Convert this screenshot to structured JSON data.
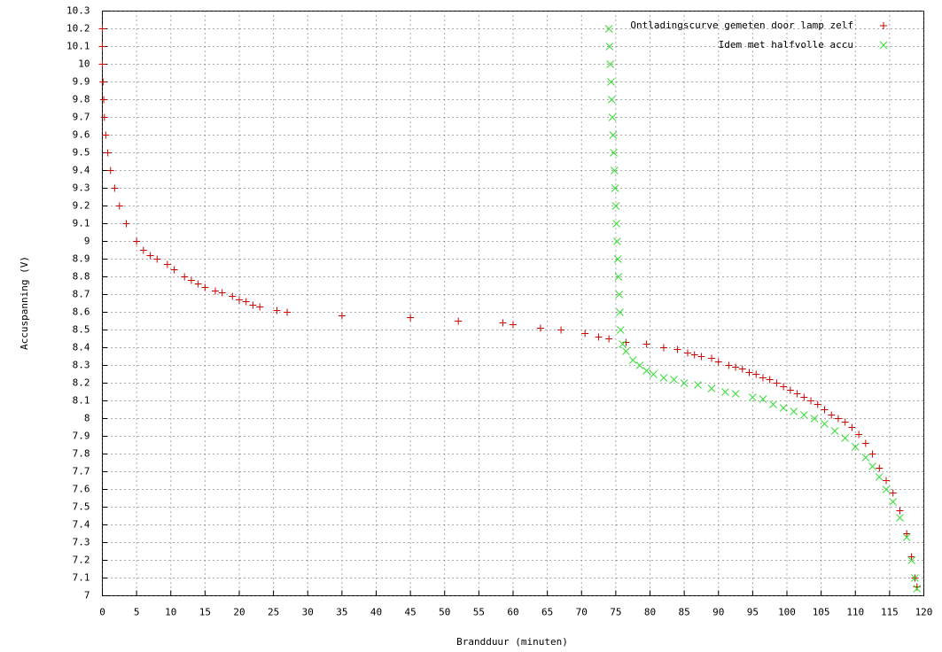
{
  "chart_data": {
    "type": "scatter",
    "x_label": "Brandduur (minuten)",
    "y_label": "Accuspanning (V)",
    "xlim": [
      0,
      120
    ],
    "ylim": [
      7,
      10.3
    ],
    "xticks": [
      0,
      5,
      10,
      15,
      20,
      25,
      30,
      35,
      40,
      45,
      50,
      55,
      60,
      65,
      70,
      75,
      80,
      85,
      90,
      95,
      100,
      105,
      110,
      115,
      120
    ],
    "yticks": [
      7,
      7.1,
      7.2,
      7.3,
      7.4,
      7.5,
      7.6,
      7.7,
      7.8,
      7.9,
      8,
      8.1,
      8.2,
      8.3,
      8.4,
      8.5,
      8.6,
      8.7,
      8.8,
      8.9,
      9,
      9.1,
      9.2,
      9.3,
      9.4,
      9.5,
      9.6,
      9.7,
      9.8,
      9.9,
      10,
      10.1,
      10.2,
      10.3
    ],
    "grid": true,
    "legend": "top-right",
    "series": [
      {
        "name": "Ontladingscurve gemeten door lamp zelf",
        "color": "#cc0000",
        "marker": "+",
        "x": [
          0,
          0,
          0,
          0.1,
          0.2,
          0.3,
          0.5,
          0.8,
          1.2,
          1.8,
          2.5,
          3.5,
          5,
          6,
          7,
          8,
          9.5,
          10.5,
          12,
          13,
          14,
          15,
          16.5,
          17.5,
          19,
          20,
          21,
          22,
          23,
          25.5,
          27,
          35,
          45,
          52,
          58.5,
          60,
          64,
          67,
          70.5,
          72.5,
          74,
          76.5,
          79.5,
          82,
          84,
          85.5,
          86.5,
          87.5,
          89,
          90,
          91.5,
          92.5,
          93.5,
          94.5,
          95.5,
          96.5,
          97.5,
          98.5,
          99.5,
          100.5,
          101.5,
          102.5,
          103.5,
          104.5,
          105.5,
          106.5,
          107.5,
          108.5,
          109.5,
          110.5,
          111.5,
          112.5,
          113.5,
          114.5,
          115.5,
          116.5,
          117.5,
          118.2,
          118.7,
          119
        ],
        "values": [
          10.2,
          10.1,
          10.0,
          9.9,
          9.8,
          9.7,
          9.6,
          9.5,
          9.4,
          9.3,
          9.2,
          9.1,
          9.0,
          8.95,
          8.92,
          8.9,
          8.87,
          8.84,
          8.8,
          8.78,
          8.76,
          8.74,
          8.72,
          8.71,
          8.69,
          8.67,
          8.66,
          8.64,
          8.63,
          8.61,
          8.6,
          8.58,
          8.57,
          8.55,
          8.54,
          8.53,
          8.51,
          8.5,
          8.48,
          8.46,
          8.45,
          8.43,
          8.42,
          8.4,
          8.39,
          8.37,
          8.36,
          8.35,
          8.34,
          8.32,
          8.3,
          8.29,
          8.28,
          8.26,
          8.25,
          8.23,
          8.22,
          8.2,
          8.18,
          8.16,
          8.14,
          8.12,
          8.1,
          8.08,
          8.05,
          8.02,
          8.0,
          7.98,
          7.95,
          7.91,
          7.86,
          7.8,
          7.72,
          7.65,
          7.58,
          7.48,
          7.35,
          7.22,
          7.1,
          7.05
        ]
      },
      {
        "name": "Idem met halfvolle accu",
        "color": "#33dd33",
        "marker": "x",
        "x": [
          74,
          74.1,
          74.2,
          74.3,
          74.4,
          74.5,
          74.6,
          74.7,
          74.8,
          74.9,
          75,
          75.1,
          75.2,
          75.3,
          75.4,
          75.5,
          75.6,
          75.7,
          76,
          76.5,
          77.5,
          78.5,
          79.5,
          80.5,
          82,
          83.5,
          85,
          87,
          89,
          91,
          92.5,
          95,
          96.5,
          98,
          99.5,
          101,
          102.5,
          104,
          105.5,
          107,
          108.5,
          110,
          111.5,
          112.5,
          113.5,
          114.5,
          115.5,
          116.5,
          117.5,
          118.2,
          118.7,
          119
        ],
        "values": [
          10.2,
          10.1,
          10.0,
          9.9,
          9.8,
          9.7,
          9.6,
          9.5,
          9.4,
          9.3,
          9.2,
          9.1,
          9.0,
          8.9,
          8.8,
          8.7,
          8.6,
          8.5,
          8.42,
          8.38,
          8.33,
          8.3,
          8.27,
          8.25,
          8.23,
          8.22,
          8.2,
          8.19,
          8.17,
          8.15,
          8.14,
          8.12,
          8.11,
          8.08,
          8.06,
          8.04,
          8.02,
          8.0,
          7.97,
          7.93,
          7.89,
          7.84,
          7.78,
          7.73,
          7.67,
          7.6,
          7.53,
          7.44,
          7.33,
          7.2,
          7.1,
          7.04
        ]
      }
    ]
  }
}
